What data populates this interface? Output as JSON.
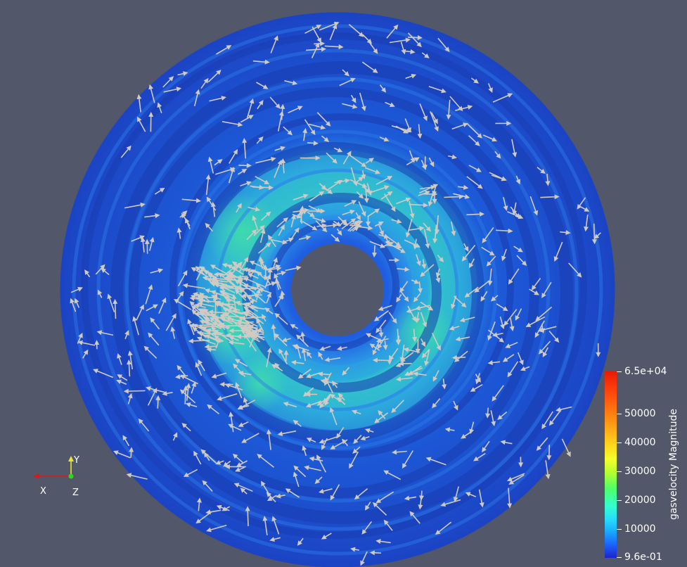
{
  "scalar_bar": {
    "title": "gasvelocity Magnitude",
    "labels": [
      "6.5e+04",
      "50000",
      "40000",
      "30000",
      "20000",
      "10000",
      "9.6e-01"
    ]
  },
  "orientation_axes": {
    "x_label": "X",
    "y_label": "Y",
    "z_label": "Z",
    "colors": {
      "x": "#d71a1a",
      "y": "#e8e52a",
      "z": "#2ad71e"
    }
  },
  "colors": {
    "background": "#525769",
    "disk_base": "#1f4fd0",
    "disk_dark_band": "#1a3cb0",
    "disk_mid": "#2a9ee8",
    "disk_bright": "#33d4c0",
    "glyph": "#cfcac4"
  }
}
